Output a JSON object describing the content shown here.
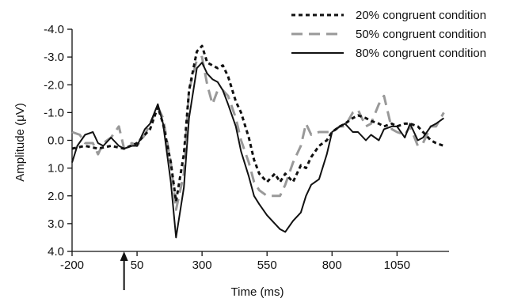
{
  "chart_data": {
    "type": "line",
    "xlabel": "Time (ms)",
    "ylabel": "Amplitude (μV)",
    "xlim": [
      -200,
      1250
    ],
    "ylim": [
      -4.0,
      4.0
    ],
    "y_inverted": true,
    "x_ticks": [
      -200,
      50,
      300,
      550,
      800,
      1050
    ],
    "x_tick_labels": [
      "-200",
      "50",
      "300",
      "550",
      "800",
      "1050"
    ],
    "y_ticks": [
      -4.0,
      -3.0,
      -2.0,
      -1.0,
      0.0,
      1.0,
      2.0,
      3.0,
      4.0
    ],
    "y_tick_labels": [
      "-4.0",
      "-3.0",
      "-2.0",
      "-1.0",
      "0.0",
      "1.0",
      "2.0",
      "3.0",
      "4.0"
    ],
    "grid": false,
    "legend_position": "top-right",
    "stimulus_onset_marker_x": 0,
    "series": [
      {
        "name": "20% congruent condition",
        "color": "#111111",
        "style": "dotted",
        "x": [
          -200,
          -150,
          -100,
          -50,
          0,
          50,
          100,
          130,
          150,
          180,
          200,
          230,
          250,
          280,
          300,
          320,
          340,
          360,
          380,
          400,
          430,
          450,
          480,
          500,
          520,
          550,
          580,
          600,
          620,
          650,
          680,
          700,
          720,
          750,
          780,
          800,
          830,
          850,
          880,
          900,
          930,
          950,
          980,
          1000,
          1030,
          1050,
          1080,
          1100,
          1130,
          1150,
          1180,
          1200,
          1230
        ],
        "y": [
          0.3,
          0.2,
          0.3,
          0.2,
          0.3,
          0.1,
          -0.4,
          -1.2,
          -0.6,
          0.8,
          2.2,
          0.5,
          -1.8,
          -3.2,
          -3.4,
          -2.8,
          -2.7,
          -2.6,
          -2.7,
          -2.3,
          -1.4,
          -1.0,
          -0.1,
          0.7,
          1.2,
          1.5,
          1.2,
          1.5,
          1.2,
          1.5,
          0.9,
          1.0,
          0.6,
          0.2,
          0.0,
          -0.3,
          -0.5,
          -0.6,
          -0.8,
          -0.9,
          -0.8,
          -0.7,
          -0.6,
          -0.5,
          -0.6,
          -0.5,
          -0.6,
          -0.6,
          -0.5,
          -0.3,
          0.0,
          0.1,
          0.2
        ]
      },
      {
        "name": "50% congruent condition",
        "color": "#999999",
        "style": "dashed",
        "x": [
          -200,
          -170,
          -150,
          -120,
          -100,
          -80,
          -50,
          -20,
          0,
          30,
          50,
          80,
          100,
          130,
          150,
          180,
          200,
          230,
          250,
          280,
          300,
          320,
          340,
          360,
          380,
          400,
          430,
          450,
          480,
          500,
          520,
          550,
          580,
          600,
          620,
          650,
          680,
          700,
          720,
          750,
          780,
          800,
          830,
          850,
          880,
          900,
          930,
          950,
          980,
          1000,
          1030,
          1050,
          1080,
          1100,
          1130,
          1150,
          1180,
          1200,
          1230
        ],
        "y": [
          -0.3,
          -0.2,
          0.1,
          0.1,
          0.5,
          0.1,
          -0.1,
          -0.5,
          0.3,
          0.1,
          0.2,
          -0.2,
          -0.6,
          -1.2,
          -0.8,
          0.8,
          2.5,
          1.2,
          -1.8,
          -2.9,
          -3.0,
          -2.0,
          -1.3,
          -1.8,
          -1.8,
          -1.6,
          -0.8,
          0.0,
          0.8,
          1.5,
          1.8,
          2.0,
          2.0,
          2.0,
          1.6,
          0.8,
          0.2,
          -0.6,
          -0.2,
          -0.3,
          -0.3,
          -0.3,
          -0.5,
          -0.5,
          -1.0,
          -1.1,
          -0.5,
          -0.6,
          -1.3,
          -1.6,
          -0.4,
          -0.3,
          -0.2,
          -0.5,
          0.2,
          0.1,
          -0.5,
          -0.5,
          -1.0
        ]
      },
      {
        "name": "80% congruent condition",
        "color": "#111111",
        "style": "solid",
        "x": [
          -200,
          -180,
          -150,
          -120,
          -100,
          -80,
          -50,
          -20,
          0,
          30,
          50,
          80,
          100,
          130,
          150,
          180,
          200,
          230,
          250,
          280,
          300,
          320,
          340,
          360,
          380,
          400,
          430,
          450,
          480,
          500,
          520,
          550,
          580,
          600,
          620,
          650,
          680,
          700,
          720,
          750,
          780,
          800,
          830,
          850,
          880,
          900,
          930,
          950,
          980,
          1000,
          1030,
          1050,
          1080,
          1100,
          1130,
          1150,
          1180,
          1200,
          1230
        ],
        "y": [
          0.8,
          0.2,
          -0.2,
          -0.3,
          0.1,
          0.2,
          -0.1,
          0.2,
          0.3,
          0.2,
          0.2,
          -0.4,
          -0.6,
          -1.3,
          -0.6,
          1.5,
          3.5,
          1.7,
          -0.8,
          -2.6,
          -2.8,
          -2.4,
          -2.2,
          -2.1,
          -1.8,
          -1.3,
          -0.5,
          0.4,
          1.3,
          2.0,
          2.3,
          2.7,
          3.0,
          3.2,
          3.3,
          2.9,
          2.6,
          2.0,
          1.6,
          1.4,
          0.5,
          -0.3,
          -0.5,
          -0.6,
          -0.3,
          -0.3,
          0.0,
          -0.2,
          0.0,
          -0.4,
          -0.5,
          -0.5,
          -0.1,
          -0.6,
          0.0,
          -0.1,
          -0.5,
          -0.6,
          -0.8
        ]
      }
    ]
  }
}
